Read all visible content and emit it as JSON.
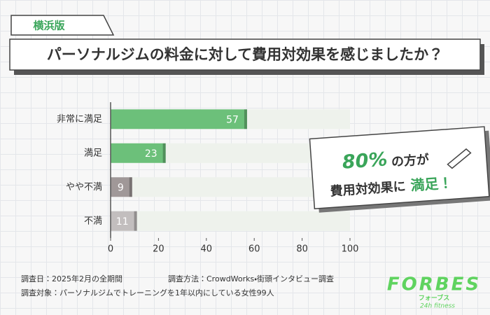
{
  "header": {
    "tag": "横浜版",
    "title": "パーソナルジムの料金に対して費用対効果を感じましたか？"
  },
  "chart_data": {
    "type": "bar",
    "orientation": "horizontal",
    "categories": [
      "非常に満足",
      "満足",
      "やや不満",
      "不満"
    ],
    "values": [
      57,
      23,
      9,
      11
    ],
    "colors": [
      "#6cc07a",
      "#6cc07a",
      "#a09898",
      "#c2bebe"
    ],
    "xlim": [
      0,
      100
    ],
    "xticks": [
      0,
      20,
      40,
      60,
      80,
      100
    ]
  },
  "callout": {
    "percent": "80%",
    "line1": "の方が",
    "line2": "費用対効果に",
    "line2_highlight": "満足！"
  },
  "notes": {
    "date": "調査日：2025年2月の全期間",
    "method": "調査方法：CrowdWorks・街頭インタビュー調査",
    "target": "調査対象：パーソナルジムでトレーニングを1年以内にしている女性99人"
  },
  "logo": {
    "name": "FORBES",
    "kana": "フォーブス",
    "sub": "24h fitness"
  }
}
